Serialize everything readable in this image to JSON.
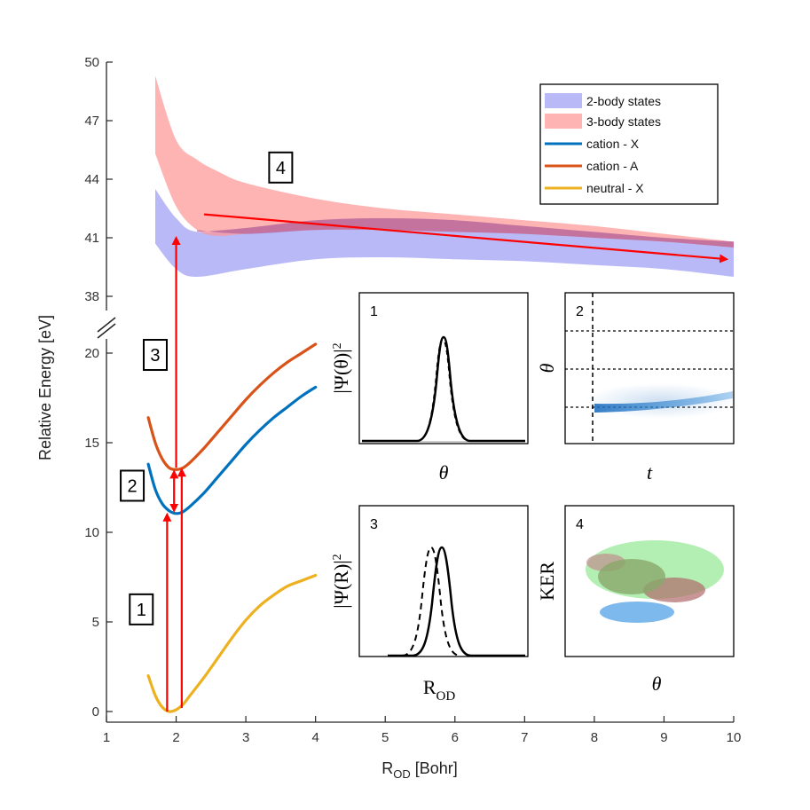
{
  "chart_data": {
    "type": "line",
    "xlabel_main": "R",
    "xlabel_sub": "OD",
    "xlabel_unit": " [Bohr]",
    "ylabel": "Relative Energy [eV]",
    "xlim": [
      1,
      10
    ],
    "xticks": [
      1,
      2,
      3,
      4,
      5,
      6,
      7,
      8,
      9,
      10
    ],
    "lower_axis": {
      "ylim": [
        0,
        20
      ],
      "ticks": [
        0,
        5,
        10,
        15,
        20
      ]
    },
    "upper_axis": {
      "ylim": [
        38,
        50
      ],
      "ticks": [
        38,
        41,
        44,
        47,
        50
      ]
    },
    "series": [
      {
        "name": "neutral - X",
        "color": "#EDB120",
        "x": [
          1.6,
          1.7,
          1.8,
          1.9,
          2.0,
          2.1,
          2.2,
          2.4,
          2.6,
          2.8,
          3.0,
          3.2,
          3.4,
          3.6,
          3.8,
          4.0
        ],
        "y": [
          2.0,
          0.9,
          0.25,
          0.0,
          0.1,
          0.4,
          0.9,
          1.9,
          3.0,
          4.1,
          5.1,
          5.9,
          6.5,
          7.0,
          7.3,
          7.6
        ]
      },
      {
        "name": "cation - X",
        "color": "#0072BD",
        "x": [
          1.6,
          1.7,
          1.8,
          1.9,
          2.0,
          2.1,
          2.2,
          2.4,
          2.6,
          2.8,
          3.0,
          3.2,
          3.4,
          3.6,
          3.8,
          4.0
        ],
        "y": [
          13.8,
          12.4,
          11.6,
          11.2,
          11.05,
          11.15,
          11.45,
          12.2,
          13.1,
          14.0,
          14.9,
          15.7,
          16.4,
          17.0,
          17.6,
          18.1
        ]
      },
      {
        "name": "cation - A",
        "color": "#D95319",
        "x": [
          1.6,
          1.7,
          1.8,
          1.9,
          2.0,
          2.1,
          2.2,
          2.4,
          2.6,
          2.8,
          3.0,
          3.2,
          3.4,
          3.6,
          3.8,
          4.0
        ],
        "y": [
          16.4,
          15.0,
          14.1,
          13.6,
          13.5,
          13.6,
          13.9,
          14.7,
          15.6,
          16.5,
          17.4,
          18.2,
          18.9,
          19.5,
          20.0,
          20.5
        ]
      }
    ],
    "bands": [
      {
        "name": "2-body states",
        "color": "#8080F0",
        "opacity": 0.55,
        "x": [
          1.7,
          2.0,
          2.3,
          3,
          4,
          5,
          6,
          7,
          8,
          9,
          10
        ],
        "upper": [
          43.5,
          42.0,
          41.3,
          41.5,
          41.9,
          42.0,
          41.9,
          41.6,
          41.3,
          41.0,
          40.8
        ],
        "lower": [
          40.7,
          39.4,
          39.0,
          39.4,
          39.9,
          40.0,
          39.9,
          39.8,
          39.6,
          39.4,
          39.0
        ]
      },
      {
        "name": "3-body states",
        "color": "#FF9494",
        "opacity": 0.7,
        "x": [
          1.7,
          2.0,
          2.3,
          2.6,
          3,
          4,
          5,
          6,
          7,
          8,
          9,
          10
        ],
        "upper": [
          49.3,
          46.0,
          45.0,
          44.4,
          43.8,
          43.0,
          42.5,
          42.2,
          41.9,
          41.6,
          41.2,
          40.8
        ],
        "lower": [
          45.3,
          42.6,
          41.4,
          41.1,
          41.2,
          41.4,
          41.4,
          41.3,
          41.2,
          41.0,
          40.8,
          40.5
        ]
      }
    ],
    "arrows": [
      {
        "x": 1.87,
        "y0": 0,
        "y1": 11.0,
        "axis": "lower"
      },
      {
        "x": 2.08,
        "y0": 0.2,
        "y1": 13.5,
        "axis": "lower"
      },
      {
        "x": 1.97,
        "y0": 11.2,
        "y1": 13.4,
        "axis": "lower",
        "double": true
      },
      {
        "x": 2.0,
        "y0": 13.6,
        "y1": 41.0,
        "axis": "mixed"
      },
      {
        "x0": 2.4,
        "y0": 42.2,
        "x1": 9.9,
        "y1": 39.9,
        "axis": "upper"
      }
    ],
    "step_labels": [
      {
        "text": "1",
        "x": 1.5,
        "y": 5.7,
        "axis": "lower"
      },
      {
        "text": "2",
        "x": 1.37,
        "y": 12.6,
        "axis": "lower"
      },
      {
        "text": "3",
        "x": 1.7,
        "y": 19.9,
        "axis": "lower"
      },
      {
        "text": "4",
        "x": 3.5,
        "y": 44.6,
        "axis": "upper"
      }
    ],
    "legend": {
      "placement": "top-right",
      "entries": [
        "2-body states",
        "3-body states",
        "cation - X",
        "cation - A",
        "neutral - X"
      ]
    },
    "insets": [
      {
        "number": "1",
        "ylabel": "|Ψ(θ)|",
        "ylabel_sup": "2",
        "xlabel": "θ",
        "content": "narrow gaussian, solid and dashed"
      },
      {
        "number": "2",
        "ylabel": "θ",
        "xlabel": "t",
        "content": "blue distribution streak"
      },
      {
        "number": "3",
        "ylabel": "|Ψ(R)|",
        "ylabel_sup": "2",
        "xlabel_main": "R",
        "xlabel_sub": "OD",
        "content": "gaussian, dashed shifted left"
      },
      {
        "number": "4",
        "ylabel": "KER",
        "xlabel": "θ",
        "content": "green, red, blue scatter clusters"
      }
    ]
  }
}
